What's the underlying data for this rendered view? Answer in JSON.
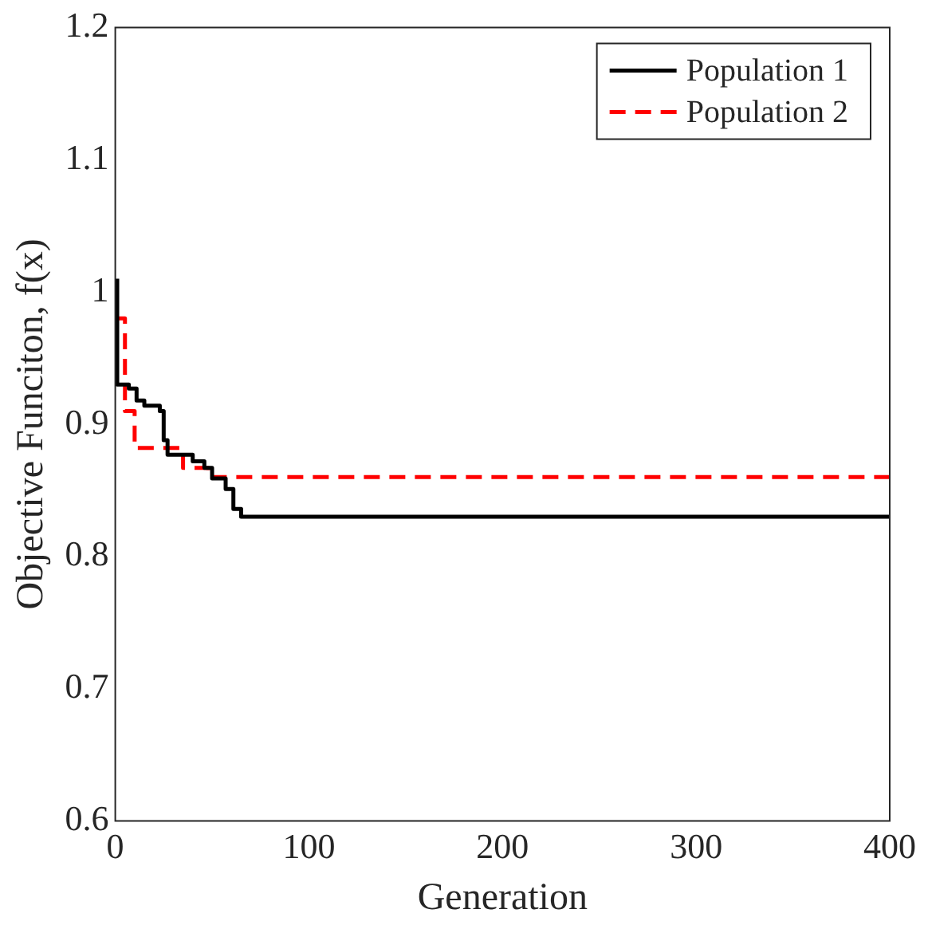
{
  "chart_data": {
    "type": "step",
    "xlabel": "Generation",
    "ylabel": "Objective Funciton, f(x)",
    "xlim": [
      0,
      400
    ],
    "xticks": [
      0,
      100,
      200,
      300,
      400
    ],
    "ylim": [
      0.6,
      1.2
    ],
    "yticks": [
      0.6,
      0.7,
      0.8,
      0.9,
      1,
      1.1,
      1.2
    ],
    "grid": false,
    "legend": "top right",
    "marker": "none",
    "series": [
      {
        "name": "Population 1",
        "color": "#000000",
        "line_style": "solid",
        "x": [
          1,
          7,
          11,
          15,
          23,
          25,
          27,
          40,
          46,
          50,
          57,
          61,
          65,
          68,
          400
        ],
        "values": [
          1.01,
          0.93,
          0.927,
          0.918,
          0.914,
          0.91,
          0.888,
          0.877,
          0.872,
          0.867,
          0.859,
          0.851,
          0.836,
          0.83,
          0.83
        ]
      },
      {
        "name": "Population 2",
        "color": "#ff0000",
        "line_style": "dashed",
        "x": [
          0,
          5,
          10,
          35,
          48,
          86,
          400
        ],
        "values": [
          1.0,
          0.98,
          0.91,
          0.882,
          0.867,
          0.86,
          0.86
        ]
      }
    ]
  }
}
